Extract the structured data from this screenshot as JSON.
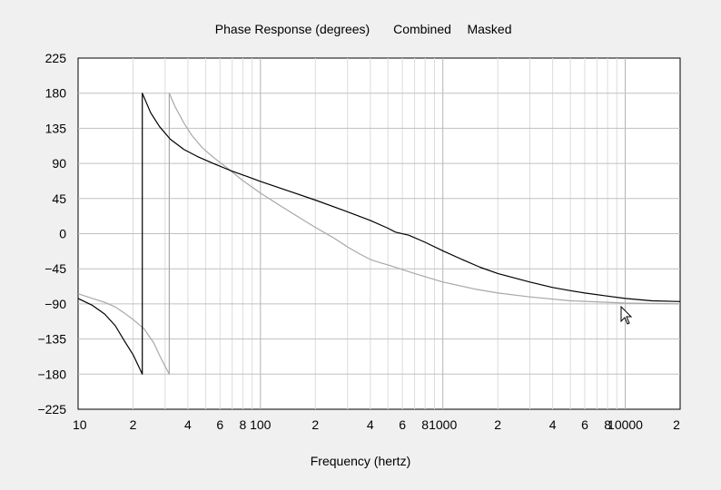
{
  "title_parts": [
    "Phase Response (degrees)",
    "Combined",
    "Masked"
  ],
  "chart_data": {
    "type": "line",
    "title": "Phase Response (degrees)   Combined   Masked",
    "xlabel": "Frequency (hertz)",
    "ylabel": "",
    "xscale": "log",
    "xlim": [
      10,
      20000
    ],
    "ylim": [
      -225,
      225
    ],
    "yticks": [
      225,
      180,
      135,
      90,
      45,
      0,
      -45,
      -90,
      -135,
      -180,
      -225
    ],
    "xtick_labels": [
      {
        "v": 10,
        "t": "10"
      },
      {
        "v": 20,
        "t": "2"
      },
      {
        "v": 40,
        "t": "4"
      },
      {
        "v": 60,
        "t": "6"
      },
      {
        "v": 80,
        "t": "8"
      },
      {
        "v": 100,
        "t": "100"
      },
      {
        "v": 200,
        "t": "2"
      },
      {
        "v": 400,
        "t": "4"
      },
      {
        "v": 600,
        "t": "6"
      },
      {
        "v": 800,
        "t": "8"
      },
      {
        "v": 1000,
        "t": "1000"
      },
      {
        "v": 2000,
        "t": "2"
      },
      {
        "v": 4000,
        "t": "4"
      },
      {
        "v": 6000,
        "t": "6"
      },
      {
        "v": 8000,
        "t": "8"
      },
      {
        "v": 10000,
        "t": "10000"
      },
      {
        "v": 20000,
        "t": "2"
      }
    ],
    "grid": true,
    "series": [
      {
        "color": "#000000",
        "points": [
          [
            10,
            -83
          ],
          [
            12,
            -92
          ],
          [
            14,
            -103
          ],
          [
            16,
            -118
          ],
          [
            18,
            -138
          ],
          [
            20,
            -155
          ],
          [
            22.5,
            -180
          ],
          [
            22.5,
            180
          ],
          [
            25,
            155
          ],
          [
            28,
            137
          ],
          [
            32,
            121
          ],
          [
            38,
            108
          ],
          [
            45,
            99
          ],
          [
            55,
            90
          ],
          [
            70,
            80
          ],
          [
            85,
            73
          ],
          [
            100,
            67
          ],
          [
            150,
            53
          ],
          [
            200,
            43
          ],
          [
            300,
            28
          ],
          [
            400,
            17
          ],
          [
            500,
            7
          ],
          [
            550,
            2
          ],
          [
            650,
            -2
          ],
          [
            800,
            -11
          ],
          [
            1000,
            -22
          ],
          [
            1300,
            -34
          ],
          [
            1600,
            -43
          ],
          [
            2000,
            -51
          ],
          [
            3000,
            -62
          ],
          [
            4000,
            -69
          ],
          [
            5000,
            -73
          ],
          [
            6000,
            -76
          ],
          [
            8000,
            -80
          ],
          [
            10000,
            -83
          ],
          [
            14000,
            -86
          ],
          [
            20000,
            -87
          ]
        ]
      },
      {
        "color": "#a8a8a8",
        "points": [
          [
            10,
            -77
          ],
          [
            12,
            -83
          ],
          [
            14,
            -88
          ],
          [
            16,
            -94
          ],
          [
            18,
            -102
          ],
          [
            20,
            -110
          ],
          [
            23,
            -122
          ],
          [
            26,
            -140
          ],
          [
            28.5,
            -160
          ],
          [
            31.6,
            -180
          ],
          [
            31.6,
            180
          ],
          [
            34,
            163
          ],
          [
            38,
            142
          ],
          [
            42,
            126
          ],
          [
            48,
            110
          ],
          [
            55,
            98
          ],
          [
            65,
            85
          ],
          [
            80,
            68
          ],
          [
            100,
            52
          ],
          [
            130,
            35
          ],
          [
            160,
            22
          ],
          [
            200,
            8
          ],
          [
            250,
            -5
          ],
          [
            300,
            -17
          ],
          [
            350,
            -26
          ],
          [
            400,
            -33
          ],
          [
            450,
            -37
          ],
          [
            500,
            -40
          ],
          [
            700,
            -51
          ],
          [
            1000,
            -62
          ],
          [
            1500,
            -71
          ],
          [
            2000,
            -76
          ],
          [
            3000,
            -81
          ],
          [
            5000,
            -86
          ],
          [
            10000,
            -89
          ],
          [
            20000,
            -90
          ]
        ]
      }
    ]
  }
}
